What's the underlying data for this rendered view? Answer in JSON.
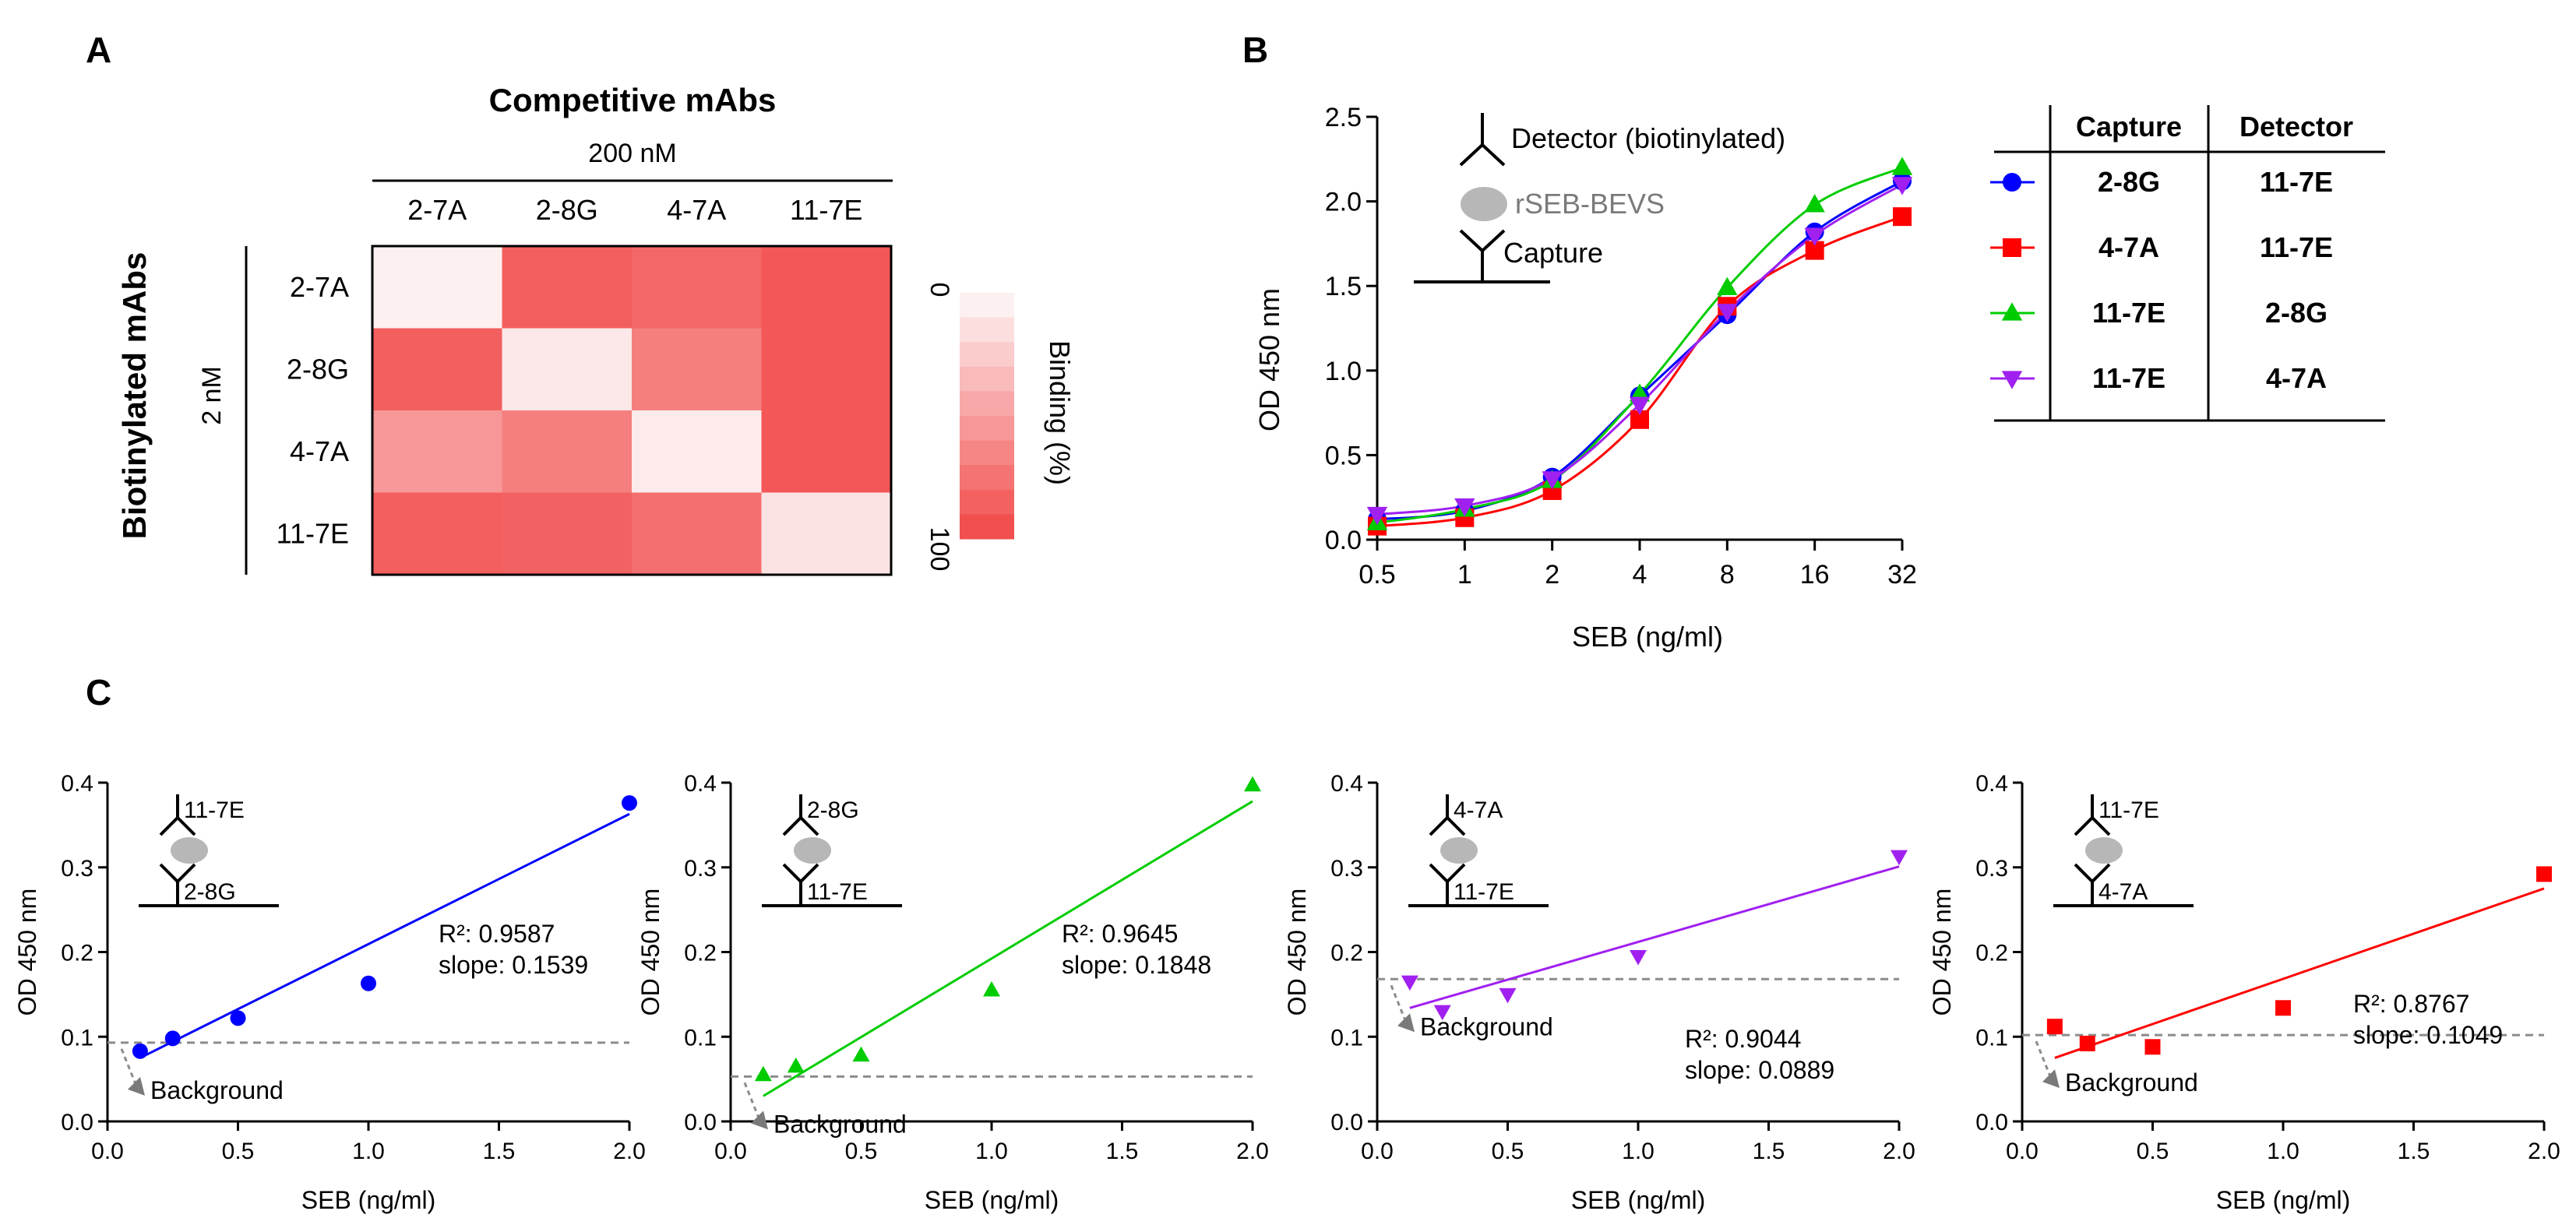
{
  "panels": {
    "a_label": "A",
    "b_label": "B",
    "c_label": "C"
  },
  "colors": {
    "blue": "#0000ff",
    "red": "#ff0000",
    "green": "#00cc00",
    "purple": "#a020f0",
    "heat_max": "#f24f4f",
    "heat_min": "#fdf0f0"
  },
  "chart_data": [
    {
      "id": "A",
      "type": "heatmap",
      "title": "Competitive mAbs",
      "column_group_label": "200 nM",
      "row_title": "Biotinylated mAbs",
      "row_group_label": "2 nM",
      "columns": [
        "2-7A",
        "2-8G",
        "4-7A",
        "11-7E"
      ],
      "rows": [
        "2-7A",
        "2-8G",
        "4-7A",
        "11-7E"
      ],
      "values_binding_percent": [
        [
          0,
          90,
          85,
          95
        ],
        [
          90,
          5,
          70,
          95
        ],
        [
          55,
          70,
          3,
          95
        ],
        [
          90,
          88,
          80,
          8
        ]
      ],
      "colorbar": {
        "label": "Binding (%)",
        "min_label": "0",
        "max_label": "100",
        "range": [
          0,
          100
        ]
      }
    },
    {
      "id": "B",
      "type": "line",
      "xlabel": "SEB (ng/ml)",
      "ylabel": "OD 450 nm",
      "xscale": "log2",
      "x": [
        0.5,
        1,
        2,
        4,
        8,
        16,
        32
      ],
      "x_tick_labels": [
        "0.5",
        "1",
        "2",
        "4",
        "8",
        "16",
        "32"
      ],
      "ylim": [
        0,
        2.5
      ],
      "y_ticks": [
        "0.0",
        "0.5",
        "1.0",
        "1.5",
        "2.0",
        "2.5"
      ],
      "series": [
        {
          "name": "2-8G / 11-7E",
          "capture": "2-8G",
          "detector": "11-7E",
          "marker": "circle",
          "color": "#0000ff",
          "values": [
            0.12,
            0.17,
            0.37,
            0.85,
            1.33,
            1.82,
            2.12
          ]
        },
        {
          "name": "4-7A / 11-7E",
          "capture": "4-7A",
          "detector": "11-7E",
          "marker": "square",
          "color": "#ff0000",
          "values": [
            0.08,
            0.13,
            0.29,
            0.71,
            1.38,
            1.71,
            1.91
          ]
        },
        {
          "name": "11-7E / 2-8G",
          "capture": "11-7E",
          "detector": "2-8G",
          "marker": "triangle-up",
          "color": "#00cc00",
          "values": [
            0.1,
            0.18,
            0.35,
            0.86,
            1.49,
            1.98,
            2.2
          ]
        },
        {
          "name": "11-7E / 4-7A",
          "capture": "11-7E",
          "detector": "4-7A",
          "marker": "triangle-down",
          "color": "#a020f0",
          "values": [
            0.15,
            0.2,
            0.36,
            0.8,
            1.35,
            1.8,
            2.1
          ]
        }
      ],
      "legend_table": {
        "headers": [
          "Capture",
          "Detector"
        ]
      },
      "schematic": {
        "detector_label": "Detector (biotinylated)",
        "antigen_label": "rSEB-BEVS",
        "capture_label": "Capture"
      }
    },
    {
      "id": "C1",
      "type": "scatter",
      "xlabel": "SEB (ng/ml)",
      "ylabel": "OD 450 nm",
      "xlim": [
        0,
        2
      ],
      "ylim": [
        0,
        0.4
      ],
      "x_ticks": [
        "0.0",
        "0.5",
        "1.0",
        "1.5",
        "2.0"
      ],
      "y_ticks": [
        "0.0",
        "0.1",
        "0.2",
        "0.3",
        "0.4"
      ],
      "x": [
        0.125,
        0.25,
        0.5,
        1,
        2
      ],
      "y": [
        0.083,
        0.098,
        0.122,
        0.163,
        0.376
      ],
      "marker": "circle",
      "color": "#0000ff",
      "fit": {
        "x": [
          0.125,
          2.0
        ],
        "y": [
          0.075,
          0.363
        ]
      },
      "background": 0.093,
      "r2_text": "R²: 0.9587",
      "slope_text": "slope: 0.1539",
      "background_label": "Background",
      "top_label": "11-7E",
      "bottom_label": "2-8G"
    },
    {
      "id": "C2",
      "type": "scatter",
      "xlabel": "SEB (ng/ml)",
      "ylabel": "OD 450 nm",
      "xlim": [
        0,
        2
      ],
      "ylim": [
        0,
        0.4
      ],
      "x_ticks": [
        "0.0",
        "0.5",
        "1.0",
        "1.5",
        "2.0"
      ],
      "y_ticks": [
        "0.0",
        "0.1",
        "0.2",
        "0.3",
        "0.4"
      ],
      "x": [
        0.125,
        0.25,
        0.5,
        1,
        2
      ],
      "y": [
        0.055,
        0.065,
        0.078,
        0.155,
        0.397
      ],
      "marker": "triangle-up",
      "color": "#00cc00",
      "fit": {
        "x": [
          0.125,
          2.0
        ],
        "y": [
          0.03,
          0.378
        ]
      },
      "background": 0.053,
      "r2_text": "R²: 0.9645",
      "slope_text": "slope: 0.1848",
      "background_label": "Background",
      "top_label": "2-8G",
      "bottom_label": "11-7E"
    },
    {
      "id": "C3",
      "type": "scatter",
      "xlabel": "SEB (ng/ml)",
      "ylabel": "OD 450 nm",
      "xlim": [
        0,
        2
      ],
      "ylim": [
        0,
        0.4
      ],
      "x_ticks": [
        "0.0",
        "0.5",
        "1.0",
        "1.5",
        "2.0"
      ],
      "y_ticks": [
        "0.0",
        "0.1",
        "0.2",
        "0.3",
        "0.4"
      ],
      "x": [
        0.125,
        0.25,
        0.5,
        1,
        2
      ],
      "y": [
        0.165,
        0.13,
        0.15,
        0.195,
        0.313
      ],
      "marker": "triangle-down",
      "color": "#a020f0",
      "fit": {
        "x": [
          0.125,
          2.0
        ],
        "y": [
          0.134,
          0.301
        ]
      },
      "background": 0.168,
      "r2_text": "R²: 0.9044",
      "slope_text": "slope: 0.0889",
      "background_label": "Background",
      "top_label": "4-7A",
      "bottom_label": "11-7E"
    },
    {
      "id": "C4",
      "type": "scatter",
      "xlabel": "SEB (ng/ml)",
      "ylabel": "OD 450 nm",
      "xlim": [
        0,
        2
      ],
      "ylim": [
        0,
        0.4
      ],
      "x_ticks": [
        "0.0",
        "0.5",
        "1.0",
        "1.5",
        "2.0"
      ],
      "y_ticks": [
        "0.0",
        "0.1",
        "0.2",
        "0.3",
        "0.4"
      ],
      "x": [
        0.125,
        0.25,
        0.5,
        1,
        2
      ],
      "y": [
        0.112,
        0.092,
        0.088,
        0.134,
        0.292
      ],
      "marker": "square",
      "color": "#ff0000",
      "fit": {
        "x": [
          0.125,
          2.0
        ],
        "y": [
          0.075,
          0.275
        ]
      },
      "background": 0.102,
      "r2_text": "R²: 0.8767",
      "slope_text": "slope: 0.1049",
      "background_label": "Background",
      "top_label": "11-7E",
      "bottom_label": "4-7A"
    }
  ]
}
